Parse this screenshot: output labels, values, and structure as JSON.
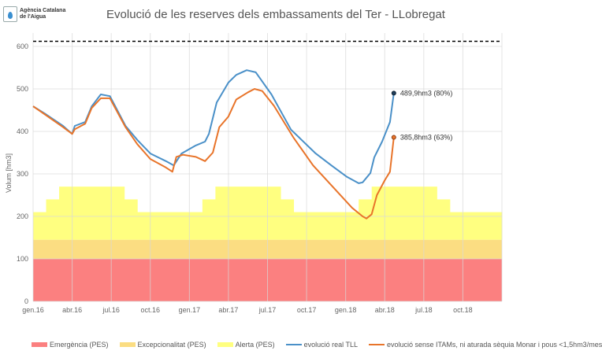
{
  "logo": {
    "text_line1": "Agència Catalana",
    "text_line2": "de l'Aigua"
  },
  "chart_data": {
    "type": "line",
    "title": "Evolució de les reserves dels embassaments del Ter - LLobregat",
    "xlabel": "",
    "ylabel": "Volum [hm3]",
    "ylim": [
      0,
      640
    ],
    "yticks": [
      0,
      100,
      200,
      300,
      400,
      500,
      600
    ],
    "x_unit": "months since gen.16",
    "xlim": [
      0,
      36
    ],
    "xtick_labels": [
      "gen.16",
      "abr.16",
      "jul.16",
      "oct.16",
      "gen.17",
      "abr.17",
      "jul.17",
      "oct.17",
      "gen.18",
      "abr.18",
      "jul.18",
      "oct.18"
    ],
    "grid": true,
    "legend_position": "bottom",
    "reference_line": {
      "value": 612,
      "style": "dashed",
      "color": "#000000"
    },
    "bands": [
      {
        "name": "Emergència (PES)",
        "color": "#fb8080",
        "from": 0,
        "to": 100
      },
      {
        "name": "Excepcionalitat (PES)",
        "color": "#fbdd82",
        "from": 100,
        "to": 145
      },
      {
        "name": "Alerta (PES)",
        "color": "#ffff80",
        "from": 145,
        "steps": [
          [
            0,
            210
          ],
          [
            1,
            240
          ],
          [
            2,
            270
          ],
          [
            7,
            240
          ],
          [
            8,
            210
          ],
          [
            13,
            240
          ],
          [
            14,
            270
          ],
          [
            19,
            240
          ],
          [
            20,
            210
          ],
          [
            25,
            240
          ],
          [
            26,
            270
          ],
          [
            31,
            240
          ],
          [
            32,
            210
          ],
          [
            36,
            210
          ]
        ]
      }
    ],
    "series": [
      {
        "name": "evolució real TLL",
        "color": "#4a90c8",
        "points": [
          [
            0,
            459
          ],
          [
            1,
            440
          ],
          [
            2.3,
            413
          ],
          [
            3,
            394
          ],
          [
            3.2,
            413
          ],
          [
            4,
            422
          ],
          [
            4.5,
            459
          ],
          [
            5.2,
            487
          ],
          [
            5.9,
            483
          ],
          [
            7.1,
            413
          ],
          [
            8,
            380
          ],
          [
            9,
            348
          ],
          [
            10.2,
            330
          ],
          [
            10.8,
            320
          ],
          [
            11.4,
            348
          ],
          [
            12.5,
            367
          ],
          [
            13.2,
            376
          ],
          [
            13.5,
            394
          ],
          [
            14.1,
            468
          ],
          [
            15,
            515
          ],
          [
            15.6,
            533
          ],
          [
            16.4,
            544
          ],
          [
            17.1,
            539
          ],
          [
            18.3,
            487
          ],
          [
            19.8,
            404
          ],
          [
            21.7,
            348
          ],
          [
            22.9,
            320
          ],
          [
            24.1,
            293
          ],
          [
            25,
            278
          ],
          [
            25.3,
            280
          ],
          [
            25.9,
            302
          ],
          [
            26.2,
            339
          ],
          [
            26.8,
            376
          ],
          [
            27.4,
            422
          ],
          [
            27.7,
            490
          ]
        ],
        "end_label": "489,9hm3 (80%)"
      },
      {
        "name": "evolució sense ITAMs, ni aturada sèquia Monar i pous <1,5hm3/mes",
        "color": "#e8742a",
        "points": [
          [
            0,
            459
          ],
          [
            1,
            438
          ],
          [
            2.3,
            410
          ],
          [
            3,
            394
          ],
          [
            3.2,
            405
          ],
          [
            4,
            418
          ],
          [
            4.5,
            455
          ],
          [
            5.2,
            478
          ],
          [
            5.9,
            478
          ],
          [
            7.1,
            410
          ],
          [
            8,
            370
          ],
          [
            9,
            335
          ],
          [
            10.2,
            315
          ],
          [
            10.7,
            305
          ],
          [
            11,
            340
          ],
          [
            11.5,
            345
          ],
          [
            12.5,
            340
          ],
          [
            13.2,
            330
          ],
          [
            13.8,
            350
          ],
          [
            14.3,
            410
          ],
          [
            15,
            435
          ],
          [
            15.6,
            475
          ],
          [
            16.5,
            492
          ],
          [
            17,
            500
          ],
          [
            17.6,
            495
          ],
          [
            18.5,
            460
          ],
          [
            20,
            385
          ],
          [
            21.5,
            320
          ],
          [
            23,
            270
          ],
          [
            24.5,
            220
          ],
          [
            25.3,
            200
          ],
          [
            25.6,
            195
          ],
          [
            26,
            205
          ],
          [
            26.4,
            250
          ],
          [
            27,
            285
          ],
          [
            27.4,
            305
          ],
          [
            27.7,
            386
          ]
        ],
        "end_label": "385,8hm3 (63%)"
      }
    ]
  }
}
